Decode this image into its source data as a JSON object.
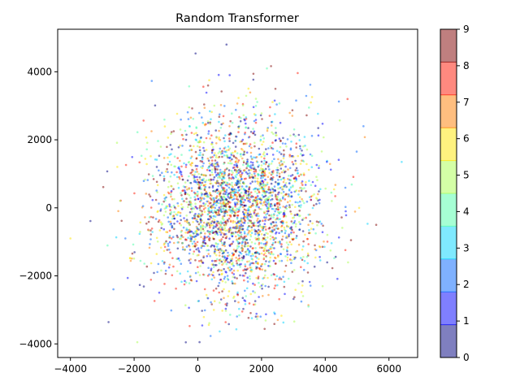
{
  "chart_data": {
    "type": "scatter",
    "title": "Random Transformer",
    "xlabel": "",
    "ylabel": "",
    "xlim": [
      -4400,
      6900
    ],
    "ylim": [
      -4400,
      5250
    ],
    "x_ticks": [
      -4000,
      -2000,
      0,
      2000,
      4000,
      6000
    ],
    "y_ticks": [
      -4000,
      -2000,
      0,
      2000,
      4000
    ],
    "grid": false,
    "legend": "none",
    "point_count_approx": 3000,
    "point_cloud": {
      "center": [
        1200,
        0
      ],
      "spread": [
        1300,
        1300
      ],
      "alpha": 0.5,
      "marker_size": "small"
    },
    "outliers": [
      {
        "x": 900,
        "y": 4800
      },
      {
        "x": 6400,
        "y": 1350
      },
      {
        "x": -4000,
        "y": -900
      },
      {
        "x": 5600,
        "y": -500
      },
      {
        "x": 5200,
        "y": 2400
      },
      {
        "x": -1900,
        "y": -3950
      },
      {
        "x": 4700,
        "y": 3200
      },
      {
        "x": 1000,
        "y": 3900
      }
    ],
    "colorbar": {
      "range": [
        0,
        9
      ],
      "ticks": [
        "0",
        "1",
        "2",
        "3",
        "4",
        "5",
        "6",
        "7",
        "8",
        "9"
      ],
      "colormap": "jet",
      "alpha": 0.5,
      "band_colors": [
        "#00007f",
        "#0000ff",
        "#0063ff",
        "#00d4ff",
        "#4effa9",
        "#a9ff4e",
        "#ffe500",
        "#ff7d00",
        "#ff1400",
        "#7f0000"
      ]
    }
  }
}
